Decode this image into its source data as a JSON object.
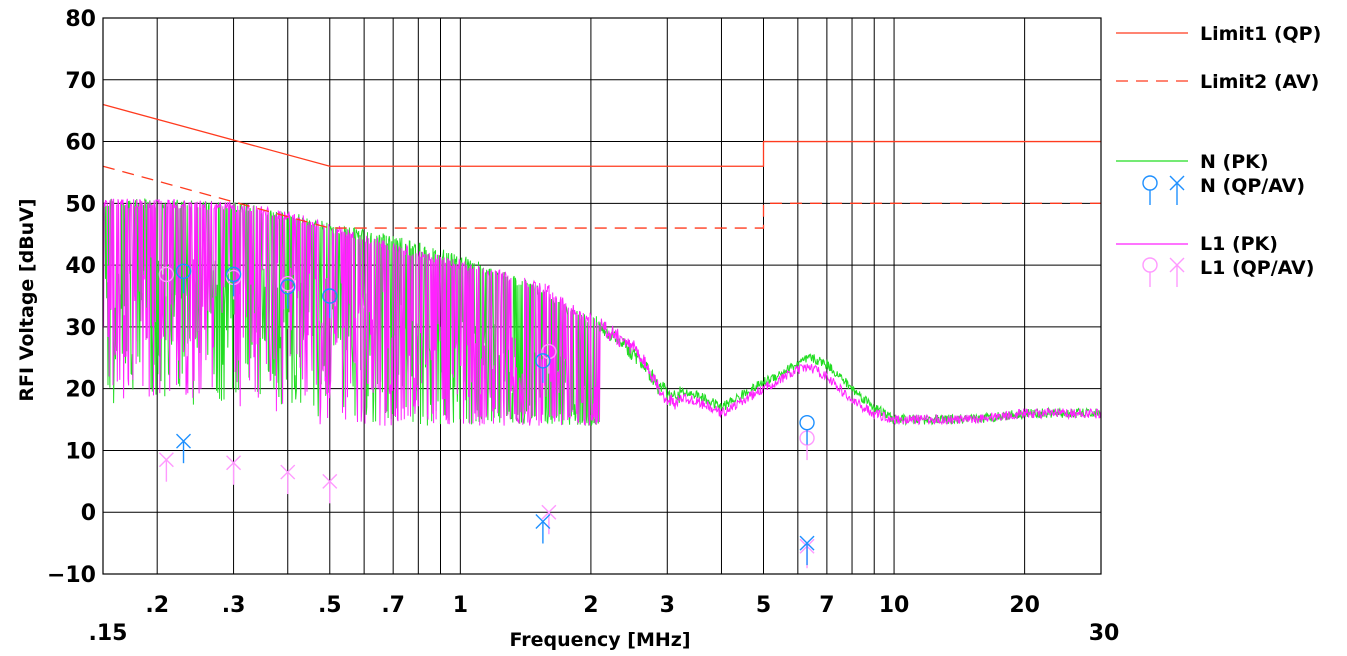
{
  "chart_data": {
    "type": "line",
    "xlabel": "Frequency [MHz]",
    "ylabel": "RFI Voltage [dBuV]",
    "x_scale": "log",
    "xlim": [
      0.15,
      30
    ],
    "ylim": [
      -10,
      80
    ],
    "grid": true,
    "legend_position": "right",
    "x_ticks": [
      {
        "value": 0.15,
        "label": ".15"
      },
      {
        "value": 0.2,
        "label": ".2"
      },
      {
        "value": 0.3,
        "label": ".3"
      },
      {
        "value": 0.5,
        "label": ".5"
      },
      {
        "value": 0.7,
        "label": ".7"
      },
      {
        "value": 1,
        "label": "1"
      },
      {
        "value": 2,
        "label": "2"
      },
      {
        "value": 3,
        "label": "3"
      },
      {
        "value": 5,
        "label": "5"
      },
      {
        "value": 7,
        "label": "7"
      },
      {
        "value": 10,
        "label": "10"
      },
      {
        "value": 20,
        "label": "20"
      },
      {
        "value": 30,
        "label": "30"
      }
    ],
    "y_ticks": [
      80,
      70,
      60,
      50,
      40,
      30,
      20,
      10,
      0,
      -10
    ],
    "colors": {
      "limit": "#ff3b1f",
      "n": "#22dd22",
      "l1": "#ff22ff",
      "n_marker": "#1e90ff",
      "l1_marker": "#ff99ff"
    },
    "series": [
      {
        "name": "Limit1 (QP)",
        "style": "solid",
        "points": [
          [
            0.15,
            66
          ],
          [
            0.5,
            56
          ],
          [
            5,
            56
          ],
          [
            5,
            60
          ],
          [
            30,
            60
          ]
        ]
      },
      {
        "name": "Limit2 (AV)",
        "style": "dashed",
        "points": [
          [
            0.15,
            56
          ],
          [
            0.5,
            46
          ],
          [
            5,
            46
          ],
          [
            5,
            50
          ],
          [
            30,
            50
          ]
        ]
      },
      {
        "name": "N (PK)",
        "style": "solid",
        "envelope": [
          [
            0.15,
            50
          ],
          [
            0.2,
            50
          ],
          [
            0.3,
            49.5
          ],
          [
            0.4,
            48
          ],
          [
            0.5,
            46
          ],
          [
            0.7,
            44
          ],
          [
            1,
            41
          ],
          [
            1.4,
            37
          ],
          [
            1.6,
            35
          ],
          [
            1.8,
            32
          ],
          [
            2.1,
            31
          ],
          [
            2.5,
            27
          ],
          [
            3,
            20
          ],
          [
            3.5,
            19
          ],
          [
            4,
            17
          ],
          [
            5,
            21
          ],
          [
            6,
            24
          ],
          [
            6.4,
            25
          ],
          [
            7,
            24
          ],
          [
            8,
            20
          ],
          [
            9,
            17
          ],
          [
            10,
            15
          ],
          [
            15,
            15
          ],
          [
            20,
            16
          ],
          [
            30,
            16
          ]
        ]
      },
      {
        "name": "N (QP/AV)",
        "style": "markers",
        "qp": [
          [
            0.23,
            39
          ],
          [
            0.3,
            38.5
          ],
          [
            0.4,
            36.5
          ],
          [
            0.5,
            35
          ],
          [
            1.55,
            24.5
          ],
          [
            6.3,
            14.5
          ]
        ],
        "av": [
          [
            0.23,
            11.5
          ],
          [
            1.55,
            -1.5
          ],
          [
            6.3,
            -5
          ]
        ]
      },
      {
        "name": "L1 (PK)",
        "style": "solid",
        "envelope": [
          [
            0.15,
            50
          ],
          [
            0.2,
            50
          ],
          [
            0.3,
            49.5
          ],
          [
            0.4,
            48
          ],
          [
            0.5,
            46
          ],
          [
            0.7,
            43
          ],
          [
            1,
            40
          ],
          [
            1.3,
            38
          ],
          [
            1.6,
            36
          ],
          [
            1.8,
            33
          ],
          [
            2.1,
            31
          ],
          [
            2.5,
            28
          ],
          [
            3,
            19
          ],
          [
            3.5,
            18
          ],
          [
            4,
            16
          ],
          [
            5,
            20
          ],
          [
            6,
            23
          ],
          [
            6.4,
            23.5
          ],
          [
            7,
            22
          ],
          [
            8,
            18
          ],
          [
            9,
            16
          ],
          [
            10,
            15
          ],
          [
            15,
            15
          ],
          [
            20,
            16
          ],
          [
            30,
            16
          ]
        ]
      },
      {
        "name": "L1 (QP/AV)",
        "style": "markers",
        "qp": [
          [
            0.21,
            38.5
          ],
          [
            0.3,
            38
          ],
          [
            0.4,
            37
          ],
          [
            1.6,
            26
          ],
          [
            6.3,
            12
          ]
        ],
        "av": [
          [
            0.21,
            8.5
          ],
          [
            0.3,
            8
          ],
          [
            0.4,
            6.5
          ],
          [
            0.5,
            5
          ],
          [
            1.6,
            0
          ],
          [
            6.3,
            -5.5
          ]
        ]
      }
    ]
  }
}
